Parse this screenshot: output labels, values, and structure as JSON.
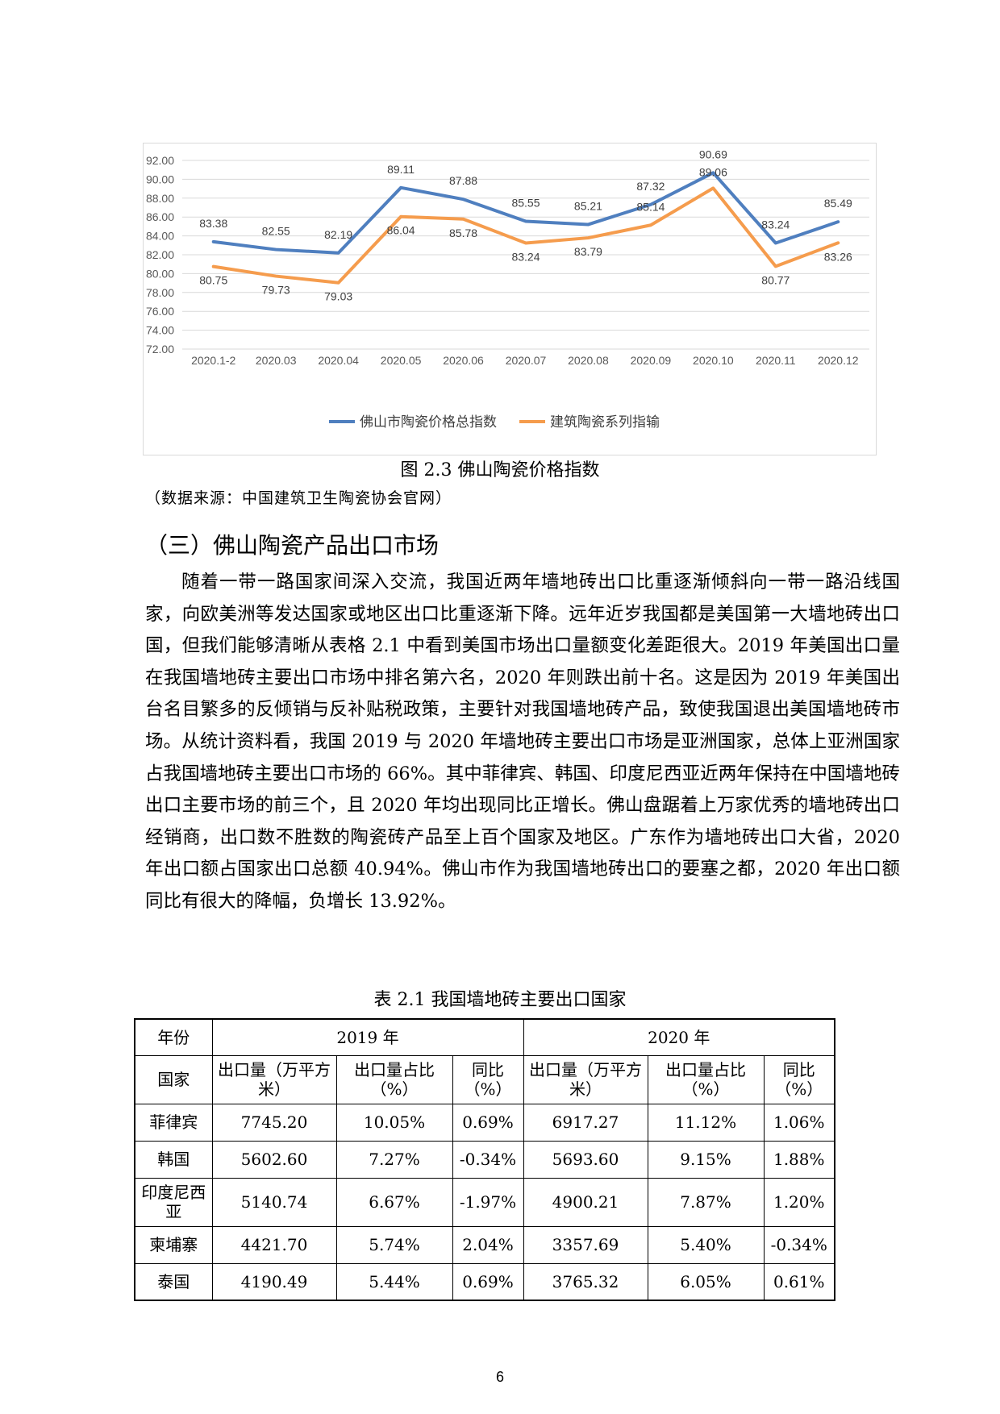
{
  "chart_data": {
    "type": "line",
    "categories": [
      "2020.1-2",
      "2020.03",
      "2020.04",
      "2020.05",
      "2020.06",
      "2020.07",
      "2020.08",
      "2020.09",
      "2020.10",
      "2020.11",
      "2020.12"
    ],
    "series": [
      {
        "name": "佛山市陶瓷价格总指数",
        "color": "#4f7fbf",
        "values": [
          83.38,
          82.55,
          82.19,
          89.11,
          87.88,
          85.55,
          85.21,
          87.32,
          90.69,
          83.24,
          85.49
        ]
      },
      {
        "name": "建筑陶瓷系列指输",
        "color": "#f59c4d",
        "values": [
          80.75,
          79.73,
          79.03,
          86.04,
          85.78,
          83.24,
          83.79,
          85.14,
          89.06,
          80.77,
          83.26
        ]
      }
    ],
    "ylim": [
      72,
      92
    ],
    "yticks": [
      "72.00",
      "74.00",
      "76.00",
      "78.00",
      "80.00",
      "82.00",
      "84.00",
      "86.00",
      "88.00",
      "90.00",
      "92.00"
    ],
    "grid": true,
    "legend_position": "bottom"
  },
  "figure_caption": "图 2.3  佛山陶瓷价格指数",
  "source_note": "（数据来源：中国建筑卫生陶瓷协会官网）",
  "section_heading": "（三）佛山陶瓷产品出口市场",
  "paragraph": "随着一带一路国家间深入交流，我国近两年墙地砖出口比重逐渐倾斜向一带一路沿线国家，向欧美洲等发达国家或地区出口比重逐渐下降。远年近岁我国都是美国第一大墙地砖出口国，但我们能够清晰从表格 2.1 中看到美国市场出口量额变化差距很大。2019 年美国出口量在我国墙地砖主要出口市场中排名第六名，2020 年则跌出前十名。这是因为 2019 年美国出台名目繁多的反倾销与反补贴税政策，主要针对我国墙地砖产品，致使我国退出美国墙地砖市场。从统计资料看，我国 2019 与 2020 年墙地砖主要出口市场是亚洲国家，总体上亚洲国家占我国墙地砖主要出口市场的 66%。其中菲律宾、韩国、印度尼西亚近两年保持在中国墙地砖出口主要市场的前三个，且 2020 年均出现同比正增长。佛山盘踞着上万家优秀的墙地砖出口经销商，出口数不胜数的陶瓷砖产品至上百个国家及地区。广东作为墙地砖出口大省，2020 年出口额占国家出口总额 40.94%。佛山市作为我国墙地砖出口的要塞之都，2020 年出口额同比有很大的降幅，负增长 13.92%。",
  "table": {
    "caption": "表 2.1  我国墙地砖主要出口国家",
    "year_label": "年份",
    "year1": "2019 年",
    "year2": "2020 年",
    "country_label": "国家",
    "col_volume": "出口量（万平方米）",
    "col_share": "出口量占比（%）",
    "col_yoy": "同比（%）",
    "rows": [
      {
        "country": "菲律宾",
        "v2019": "7745.20",
        "s2019": "10.05%",
        "y2019": "0.69%",
        "v2020": "6917.27",
        "s2020": "11.12%",
        "y2020": "1.06%"
      },
      {
        "country": "韩国",
        "v2019": "5602.60",
        "s2019": "7.27%",
        "y2019": "-0.34%",
        "v2020": "5693.60",
        "s2020": "9.15%",
        "y2020": "1.88%"
      },
      {
        "country": "印度尼西亚",
        "v2019": "5140.74",
        "s2019": "6.67%",
        "y2019": "-1.97%",
        "v2020": "4900.21",
        "s2020": "7.87%",
        "y2020": "1.20%"
      },
      {
        "country": "柬埔寨",
        "v2019": "4421.70",
        "s2019": "5.74%",
        "y2019": "2.04%",
        "v2020": "3357.69",
        "s2020": "5.40%",
        "y2020": "-0.34%"
      },
      {
        "country": "泰国",
        "v2019": "4190.49",
        "s2019": "5.44%",
        "y2019": "0.69%",
        "v2020": "3765.32",
        "s2020": "6.05%",
        "y2020": "0.61%"
      }
    ]
  },
  "page_number": "6"
}
